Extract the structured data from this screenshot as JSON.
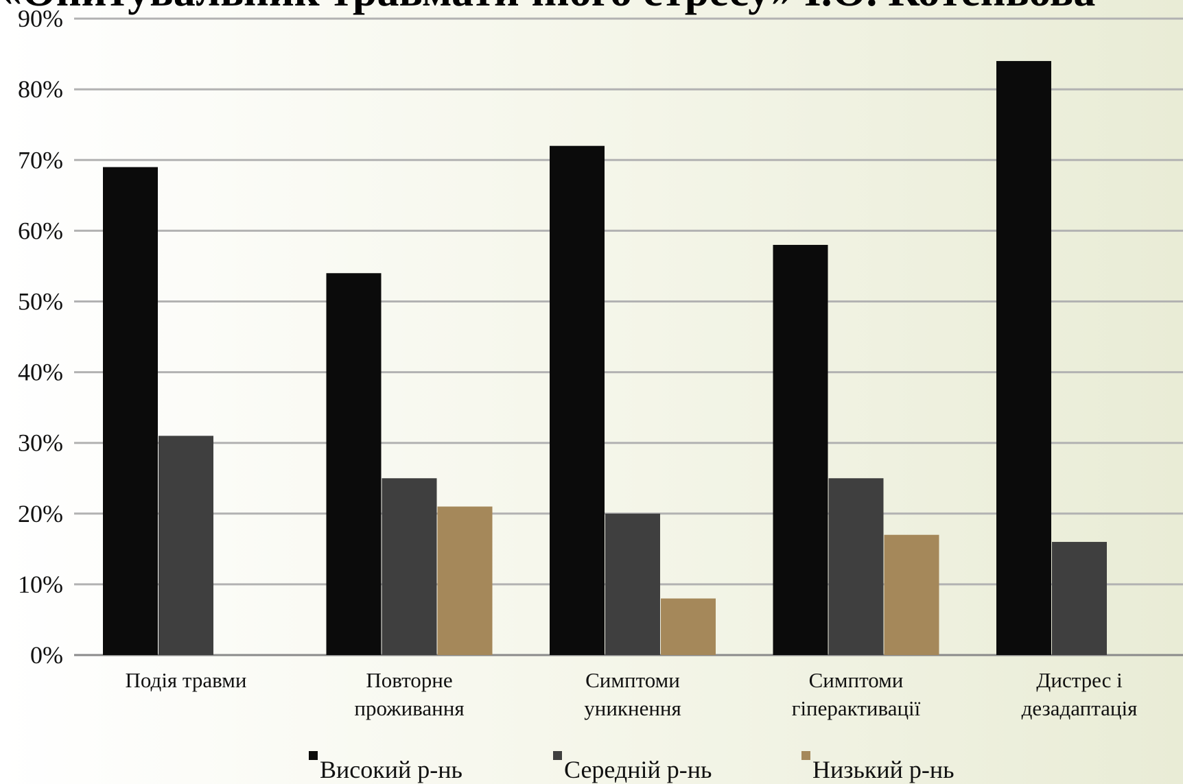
{
  "chart_data": {
    "type": "bar",
    "title": "«Опитувальник травматичного стресу» І.О. Котеньова",
    "categories": [
      [
        "Подія травми"
      ],
      [
        "Повторне",
        "проживання"
      ],
      [
        "Симптоми",
        "уникнення"
      ],
      [
        "Симптоми",
        "гіперактивації"
      ],
      [
        "Дистрес і",
        "дезадаптація"
      ]
    ],
    "series": [
      {
        "name": "Високий р-нь",
        "color": "#0b0b0b",
        "values": [
          69,
          54,
          72,
          58,
          84
        ]
      },
      {
        "name": "Середній р-нь",
        "color": "#3f3f3f",
        "values": [
          31,
          25,
          20,
          25,
          16
        ]
      },
      {
        "name": "Низький р-нь",
        "color": "#a5885a",
        "values": [
          0,
          21,
          8,
          17,
          0
        ]
      }
    ],
    "yticks": [
      "0%",
      "10%",
      "20%",
      "30%",
      "40%",
      "50%",
      "60%",
      "70%",
      "80%",
      "90%"
    ],
    "ylim": [
      0,
      90
    ],
    "grid": true,
    "legend_position": "bottom"
  }
}
